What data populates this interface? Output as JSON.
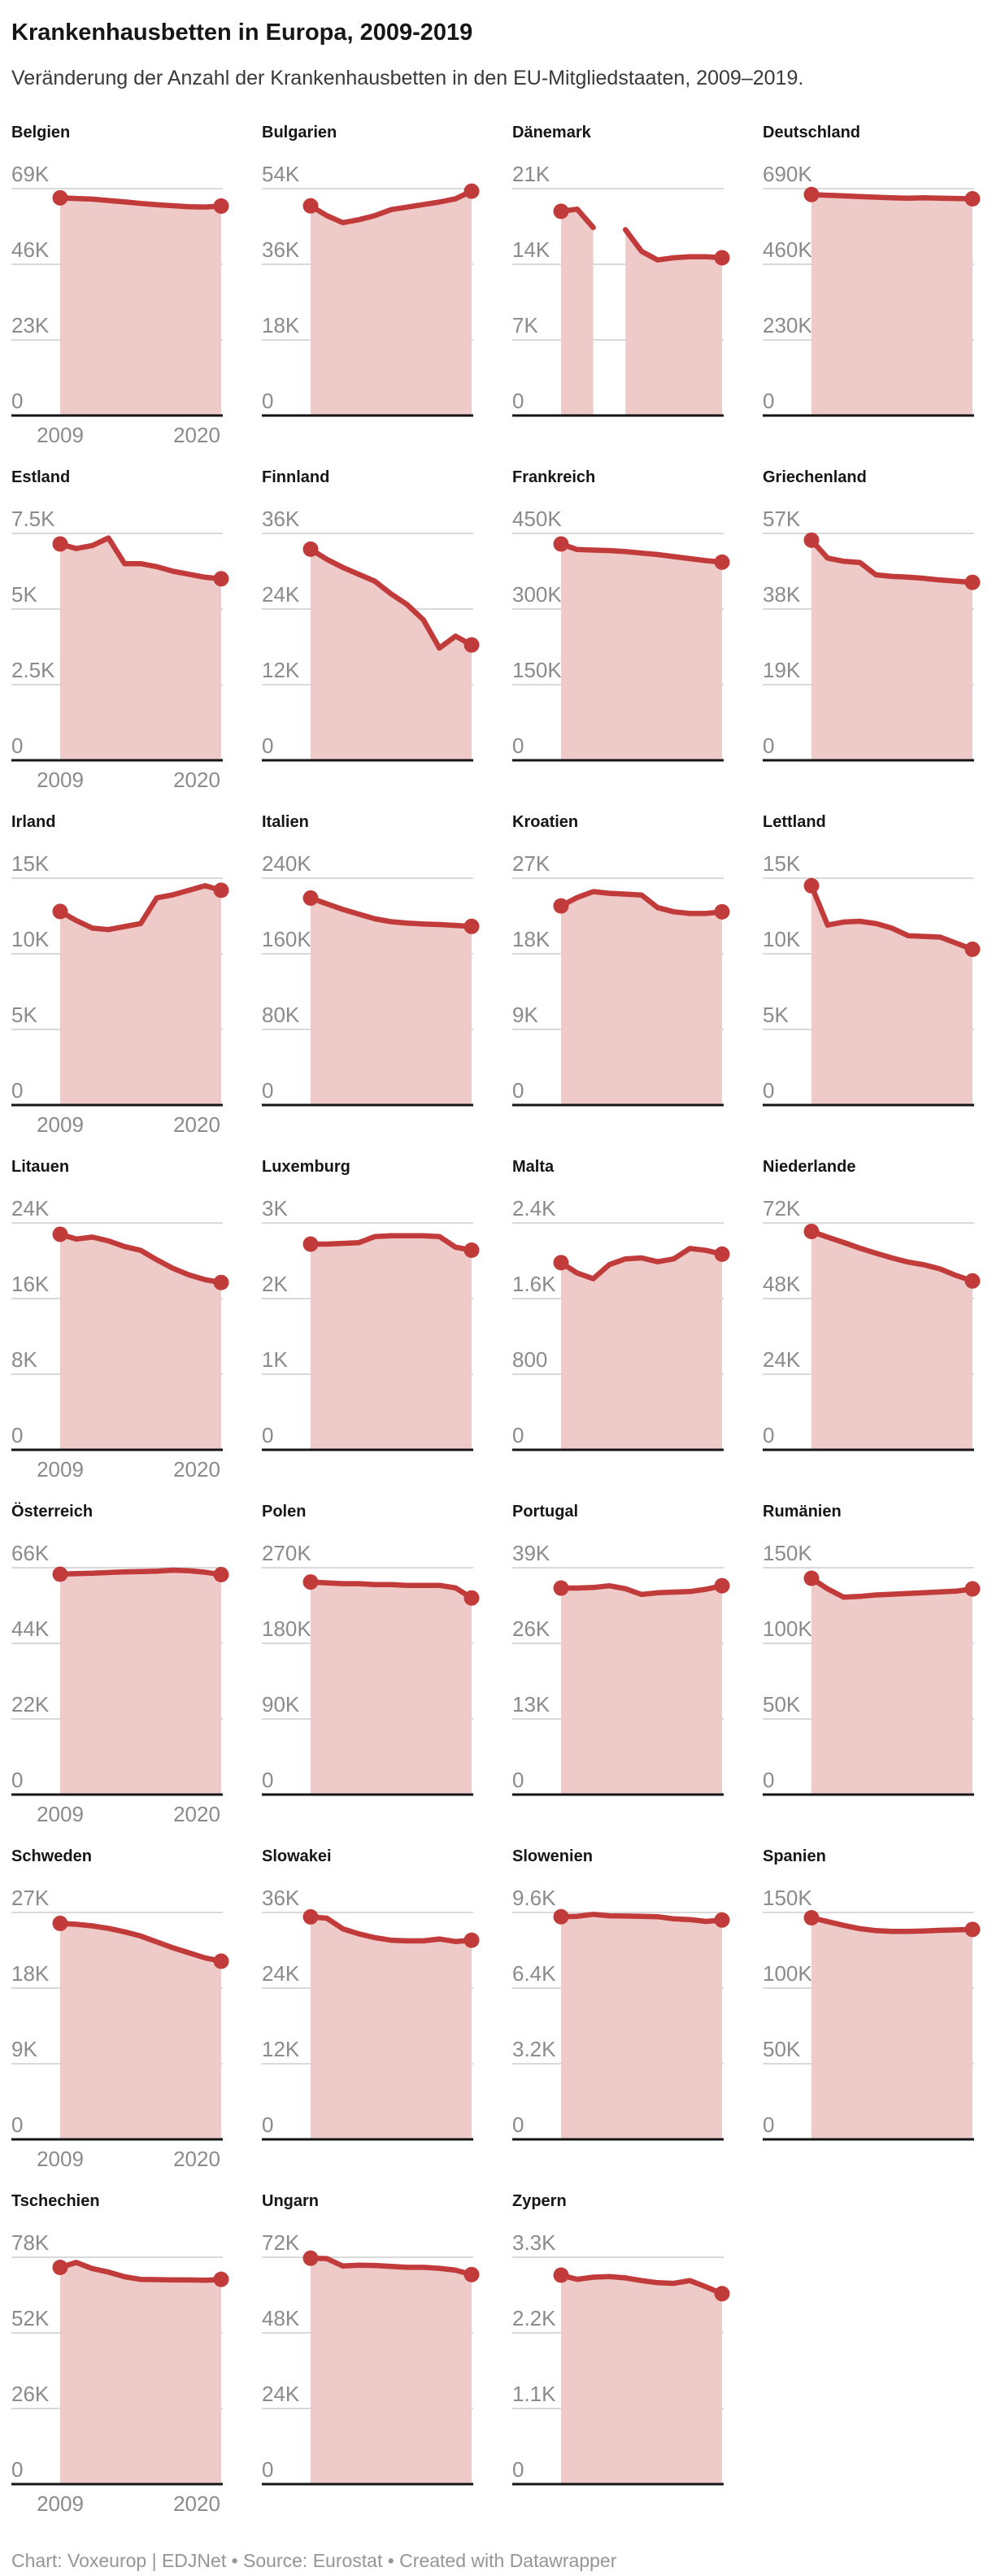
{
  "header": {
    "title": "Krankenhausbetten in Europa, 2009-2019",
    "subtitle": "Veränderung der Anzahl der Krankenhausbetten in den EU-Mitgliedstaaten, 2009–2019."
  },
  "footer": {
    "text": "Chart: Voxeurop | EDJNet • Source: Eurostat • Created with Datawrapper"
  },
  "colors": {
    "line": "#c23b3b",
    "fill": "#eecac9",
    "grid": "#d9d9d9",
    "baseline": "#151517",
    "tick_text": "#8b8b8b",
    "title_text": "#161616"
  },
  "chart_data": {
    "type": "area",
    "title": "Krankenhausbetten in Europa, 2009-2019",
    "x": [
      2009,
      2010,
      2011,
      2012,
      2013,
      2014,
      2015,
      2016,
      2017,
      2018,
      2019
    ],
    "x_axis_labels": [
      "2009",
      "2020"
    ],
    "grid": "on",
    "legend": "none",
    "panels": [
      {
        "name": "Belgien",
        "ylim": [
          0,
          69000
        ],
        "ticks": [
          {
            "label": "69K",
            "value": 69000
          },
          {
            "label": "46K",
            "value": 46000
          },
          {
            "label": "23K",
            "value": 23000
          },
          {
            "label": "0",
            "value": 0
          }
        ],
        "values": [
          66200,
          66000,
          65800,
          65400,
          65000,
          64500,
          64100,
          63800,
          63500,
          63400,
          63700
        ],
        "show_x_labels": true
      },
      {
        "name": "Bulgarien",
        "ylim": [
          0,
          54000
        ],
        "ticks": [
          {
            "label": "54K",
            "value": 54000
          },
          {
            "label": "36K",
            "value": 36000
          },
          {
            "label": "18K",
            "value": 18000
          },
          {
            "label": "0",
            "value": 0
          }
        ],
        "values": [
          49900,
          47600,
          45900,
          46600,
          47600,
          49000,
          49600,
          50200,
          50800,
          51600,
          53400
        ],
        "show_x_labels": false
      },
      {
        "name": "Dänemark",
        "ylim": [
          0,
          21000
        ],
        "ticks": [
          {
            "label": "21K",
            "value": 21000
          },
          {
            "label": "14K",
            "value": 14000
          },
          {
            "label": "7K",
            "value": 7000
          },
          {
            "label": "0",
            "value": 0
          }
        ],
        "values": [
          18900,
          19100,
          17400,
          null,
          17200,
          15200,
          14400,
          14600,
          14700,
          14700,
          14600
        ],
        "show_x_labels": false
      },
      {
        "name": "Deutschland",
        "ylim": [
          0,
          690000
        ],
        "ticks": [
          {
            "label": "690K",
            "value": 690000
          },
          {
            "label": "460K",
            "value": 460000
          },
          {
            "label": "230K",
            "value": 230000
          },
          {
            "label": "0",
            "value": 0
          }
        ],
        "values": [
          672000,
          670000,
          668000,
          666000,
          664000,
          662000,
          661000,
          662000,
          661000,
          660000,
          659000
        ],
        "show_x_labels": false
      },
      {
        "name": "Estland",
        "ylim": [
          0,
          7500
        ],
        "ticks": [
          {
            "label": "7.5K",
            "value": 7500
          },
          {
            "label": "5K",
            "value": 5000
          },
          {
            "label": "2.5K",
            "value": 2500
          },
          {
            "label": "0",
            "value": 0
          }
        ],
        "values": [
          7150,
          7000,
          7100,
          7350,
          6500,
          6500,
          6400,
          6250,
          6150,
          6050,
          6000
        ],
        "show_x_labels": true
      },
      {
        "name": "Finnland",
        "ylim": [
          0,
          36000
        ],
        "ticks": [
          {
            "label": "36K",
            "value": 36000
          },
          {
            "label": "24K",
            "value": 24000
          },
          {
            "label": "12K",
            "value": 12000
          },
          {
            "label": "0",
            "value": 0
          }
        ],
        "values": [
          33500,
          31900,
          30600,
          29500,
          28400,
          26400,
          24700,
          22300,
          17800,
          19700,
          18300
        ],
        "show_x_labels": false
      },
      {
        "name": "Frankreich",
        "ylim": [
          0,
          450000
        ],
        "ticks": [
          {
            "label": "450K",
            "value": 450000
          },
          {
            "label": "300K",
            "value": 300000
          },
          {
            "label": "150K",
            "value": 150000
          },
          {
            "label": "0",
            "value": 0
          }
        ],
        "values": [
          429000,
          418000,
          417000,
          416000,
          414000,
          411000,
          408000,
          404000,
          400000,
          396000,
          393000
        ],
        "show_x_labels": false
      },
      {
        "name": "Griechenland",
        "ylim": [
          0,
          57000
        ],
        "ticks": [
          {
            "label": "57K",
            "value": 57000
          },
          {
            "label": "38K",
            "value": 38000
          },
          {
            "label": "19K",
            "value": 19000
          },
          {
            "label": "0",
            "value": 0
          }
        ],
        "values": [
          55300,
          50800,
          50000,
          49700,
          46600,
          46200,
          46000,
          45700,
          45300,
          45000,
          44700
        ],
        "show_x_labels": false
      },
      {
        "name": "Irland",
        "ylim": [
          0,
          15000
        ],
        "ticks": [
          {
            "label": "15K",
            "value": 15000
          },
          {
            "label": "10K",
            "value": 10000
          },
          {
            "label": "5K",
            "value": 5000
          },
          {
            "label": "0",
            "value": 0
          }
        ],
        "values": [
          12800,
          12200,
          11700,
          11600,
          11800,
          12000,
          13700,
          13900,
          14200,
          14500,
          14200
        ],
        "show_x_labels": true
      },
      {
        "name": "Italien",
        "ylim": [
          0,
          240000
        ],
        "ticks": [
          {
            "label": "240K",
            "value": 240000
          },
          {
            "label": "160K",
            "value": 160000
          },
          {
            "label": "80K",
            "value": 80000
          },
          {
            "label": "0",
            "value": 0
          }
        ],
        "values": [
          219000,
          213000,
          207000,
          202000,
          197000,
          194000,
          192500,
          191500,
          191000,
          190000,
          189000
        ],
        "show_x_labels": false
      },
      {
        "name": "Kroatien",
        "ylim": [
          0,
          27000
        ],
        "ticks": [
          {
            "label": "27K",
            "value": 27000
          },
          {
            "label": "18K",
            "value": 18000
          },
          {
            "label": "9K",
            "value": 9000
          },
          {
            "label": "0",
            "value": 0
          }
        ],
        "values": [
          23700,
          24700,
          25400,
          25200,
          25100,
          25000,
          23500,
          23000,
          22800,
          22800,
          23000
        ],
        "show_x_labels": false
      },
      {
        "name": "Lettland",
        "ylim": [
          0,
          15000
        ],
        "ticks": [
          {
            "label": "15K",
            "value": 15000
          },
          {
            "label": "10K",
            "value": 10000
          },
          {
            "label": "5K",
            "value": 5000
          },
          {
            "label": "0",
            "value": 0
          }
        ],
        "values": [
          14500,
          11900,
          12100,
          12150,
          12000,
          11700,
          11200,
          11150,
          11100,
          10700,
          10300
        ],
        "show_x_labels": false
      },
      {
        "name": "Litauen",
        "ylim": [
          0,
          24000
        ],
        "ticks": [
          {
            "label": "24K",
            "value": 24000
          },
          {
            "label": "16K",
            "value": 16000
          },
          {
            "label": "8K",
            "value": 8000
          },
          {
            "label": "0",
            "value": 0
          }
        ],
        "values": [
          22800,
          22300,
          22500,
          22100,
          21500,
          21100,
          20100,
          19200,
          18500,
          18000,
          17700
        ],
        "show_x_labels": true
      },
      {
        "name": "Luxemburg",
        "ylim": [
          0,
          3000
        ],
        "ticks": [
          {
            "label": "3K",
            "value": 3000
          },
          {
            "label": "2K",
            "value": 2000
          },
          {
            "label": "1K",
            "value": 1000
          },
          {
            "label": "0",
            "value": 0
          }
        ],
        "values": [
          2720,
          2720,
          2730,
          2740,
          2820,
          2830,
          2830,
          2830,
          2820,
          2680,
          2640
        ],
        "show_x_labels": false
      },
      {
        "name": "Malta",
        "ylim": [
          0,
          2400
        ],
        "ticks": [
          {
            "label": "2.4K",
            "value": 2400
          },
          {
            "label": "1.6K",
            "value": 1600
          },
          {
            "label": "800",
            "value": 800
          },
          {
            "label": "0",
            "value": 0
          }
        ],
        "values": [
          1980,
          1870,
          1810,
          1960,
          2020,
          2030,
          1990,
          2020,
          2130,
          2110,
          2070
        ],
        "show_x_labels": false
      },
      {
        "name": "Niederlande",
        "ylim": [
          0,
          72000
        ],
        "ticks": [
          {
            "label": "72K",
            "value": 72000
          },
          {
            "label": "48K",
            "value": 48000
          },
          {
            "label": "24K",
            "value": 24000
          },
          {
            "label": "0",
            "value": 0
          }
        ],
        "values": [
          69300,
          67500,
          65800,
          64000,
          62400,
          60900,
          59600,
          58700,
          57400,
          55300,
          53600
        ],
        "show_x_labels": false
      },
      {
        "name": "Österreich",
        "ylim": [
          0,
          66000
        ],
        "ticks": [
          {
            "label": "66K",
            "value": 66000
          },
          {
            "label": "44K",
            "value": 44000
          },
          {
            "label": "22K",
            "value": 22000
          },
          {
            "label": "0",
            "value": 0
          }
        ],
        "values": [
          64100,
          64300,
          64400,
          64600,
          64800,
          64900,
          65000,
          65300,
          65100,
          64700,
          64000
        ],
        "show_x_labels": true
      },
      {
        "name": "Polen",
        "ylim": [
          0,
          270000
        ],
        "ticks": [
          {
            "label": "270K",
            "value": 270000
          },
          {
            "label": "180K",
            "value": 180000
          },
          {
            "label": "90K",
            "value": 90000
          },
          {
            "label": "0",
            "value": 0
          }
        ],
        "values": [
          253000,
          252000,
          251000,
          251000,
          250000,
          250000,
          249000,
          249000,
          249000,
          246000,
          234000
        ],
        "show_x_labels": false
      },
      {
        "name": "Portugal",
        "ylim": [
          0,
          39000
        ],
        "ticks": [
          {
            "label": "39K",
            "value": 39000
          },
          {
            "label": "26K",
            "value": 26000
          },
          {
            "label": "13K",
            "value": 13000
          },
          {
            "label": "0",
            "value": 0
          }
        ],
        "values": [
          35500,
          35500,
          35600,
          35900,
          35400,
          34400,
          34700,
          34800,
          34900,
          35300,
          35900
        ],
        "show_x_labels": false
      },
      {
        "name": "Rumänien",
        "ylim": [
          0,
          150000
        ],
        "ticks": [
          {
            "label": "150K",
            "value": 150000
          },
          {
            "label": "100K",
            "value": 100000
          },
          {
            "label": "50K",
            "value": 50000
          },
          {
            "label": "0",
            "value": 0
          }
        ],
        "values": [
          143000,
          136000,
          130500,
          131000,
          132000,
          132500,
          133000,
          133500,
          134000,
          134500,
          136000
        ],
        "show_x_labels": false
      },
      {
        "name": "Schweden",
        "ylim": [
          0,
          27000
        ],
        "ticks": [
          {
            "label": "27K",
            "value": 27000
          },
          {
            "label": "18K",
            "value": 18000
          },
          {
            "label": "9K",
            "value": 9000
          },
          {
            "label": "0",
            "value": 0
          }
        ],
        "values": [
          25700,
          25600,
          25400,
          25100,
          24700,
          24200,
          23500,
          22800,
          22200,
          21600,
          21200
        ],
        "show_x_labels": true
      },
      {
        "name": "Slowakei",
        "ylim": [
          0,
          36000
        ],
        "ticks": [
          {
            "label": "36K",
            "value": 36000
          },
          {
            "label": "24K",
            "value": 24000
          },
          {
            "label": "12K",
            "value": 12000
          },
          {
            "label": "0",
            "value": 0
          }
        ],
        "values": [
          35300,
          35100,
          33400,
          32600,
          32000,
          31600,
          31500,
          31500,
          31800,
          31400,
          31600
        ],
        "show_x_labels": false
      },
      {
        "name": "Slowenien",
        "ylim": [
          0,
          9600
        ],
        "ticks": [
          {
            "label": "9.6K",
            "value": 9600
          },
          {
            "label": "6.4K",
            "value": 6400
          },
          {
            "label": "3.2K",
            "value": 3200
          },
          {
            "label": "0",
            "value": 0
          }
        ],
        "values": [
          9420,
          9440,
          9520,
          9460,
          9450,
          9440,
          9420,
          9330,
          9300,
          9220,
          9280
        ],
        "show_x_labels": false
      },
      {
        "name": "Spanien",
        "ylim": [
          0,
          150000
        ],
        "ticks": [
          {
            "label": "150K",
            "value": 150000
          },
          {
            "label": "100K",
            "value": 100000
          },
          {
            "label": "50K",
            "value": 50000
          },
          {
            "label": "0",
            "value": 0
          }
        ],
        "values": [
          146500,
          144000,
          141500,
          139300,
          138000,
          137500,
          137500,
          137800,
          138200,
          138500,
          138800
        ],
        "show_x_labels": false
      },
      {
        "name": "Tschechien",
        "ylim": [
          0,
          78000
        ],
        "ticks": [
          {
            "label": "78K",
            "value": 78000
          },
          {
            "label": "52K",
            "value": 52000
          },
          {
            "label": "26K",
            "value": 26000
          },
          {
            "label": "0",
            "value": 0
          }
        ],
        "values": [
          74500,
          76200,
          74100,
          72900,
          71300,
          70400,
          70300,
          70200,
          70200,
          70100,
          70400
        ],
        "show_x_labels": true
      },
      {
        "name": "Ungarn",
        "ylim": [
          0,
          72000
        ],
        "ticks": [
          {
            "label": "72K",
            "value": 72000
          },
          {
            "label": "48K",
            "value": 48000
          },
          {
            "label": "24K",
            "value": 24000
          },
          {
            "label": "0",
            "value": 0
          }
        ],
        "values": [
          71700,
          71600,
          69200,
          69500,
          69400,
          69100,
          68800,
          68800,
          68500,
          67900,
          66500
        ],
        "show_x_labels": false
      },
      {
        "name": "Zypern",
        "ylim": [
          0,
          3300
        ],
        "ticks": [
          {
            "label": "3.3K",
            "value": 3300
          },
          {
            "label": "2.2K",
            "value": 2200
          },
          {
            "label": "1.1K",
            "value": 1100
          },
          {
            "label": "0",
            "value": 0
          }
        ],
        "values": [
          3040,
          2980,
          3010,
          3020,
          3000,
          2960,
          2930,
          2920,
          2960,
          2870,
          2770
        ],
        "show_x_labels": false
      }
    ]
  }
}
